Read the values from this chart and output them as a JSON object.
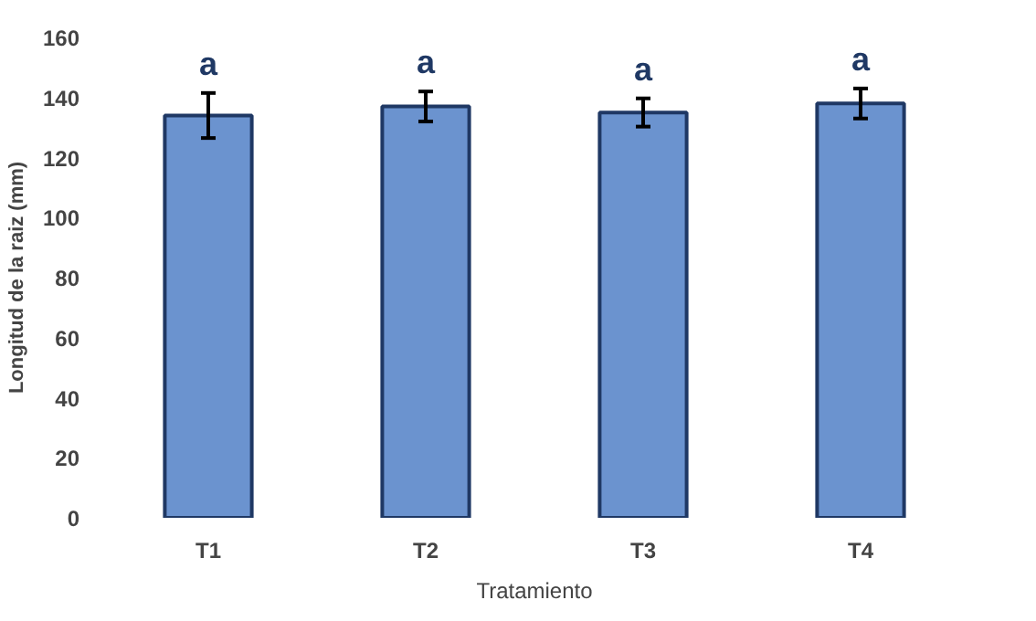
{
  "chart_data": {
    "type": "bar",
    "xlabel": "Tratamiento",
    "ylabel": "Longitud de la raiz (mm)",
    "categories": [
      "T1",
      "T2",
      "T3",
      "T4"
    ],
    "values": [
      134,
      137,
      135,
      138
    ],
    "errors": [
      7.5,
      5,
      4.7,
      5
    ],
    "color": "#6b93cf",
    "ylim": [
      0,
      160
    ],
    "yticks": [
      0,
      20,
      40,
      60,
      80,
      100,
      120,
      140,
      160
    ],
    "grid": false,
    "annotations": [
      "a",
      "a",
      "a",
      "a"
    ]
  }
}
